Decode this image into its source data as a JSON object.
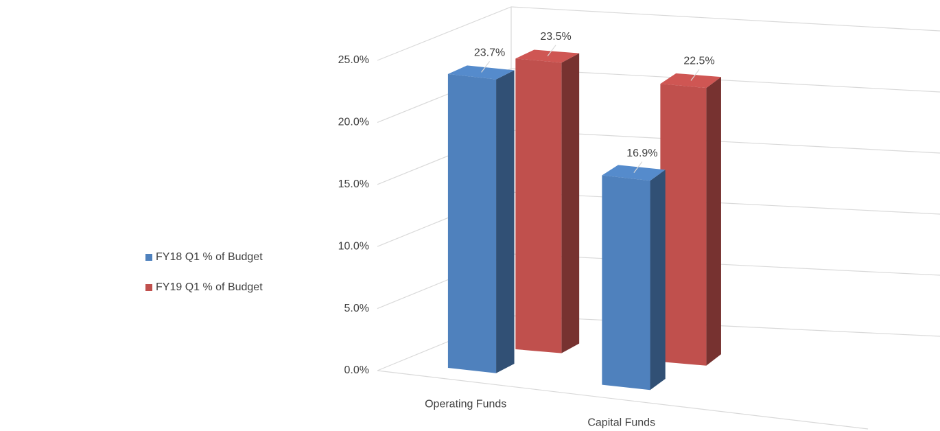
{
  "chart_data": {
    "type": "bar3d",
    "categories": [
      "Operating Funds",
      "Capital Funds"
    ],
    "series": [
      {
        "name": "FY18 Q1 % of Budget",
        "color": "#4f81bd",
        "values": [
          23.7,
          16.9
        ],
        "value_labels": [
          "23.7%",
          "16.9%"
        ]
      },
      {
        "name": "FY19 Q1 % of Budget",
        "color": "#c0504d",
        "values": [
          23.5,
          22.5
        ],
        "value_labels": [
          "23.5%",
          "22.5%"
        ]
      }
    ],
    "ylim": [
      0,
      25
    ],
    "yticks": [
      {
        "value": 0,
        "label": "0.0%"
      },
      {
        "value": 5,
        "label": "5.0%"
      },
      {
        "value": 10,
        "label": "10.0%"
      },
      {
        "value": 15,
        "label": "15.0%"
      },
      {
        "value": 20,
        "label": "20.0%"
      },
      {
        "value": 25,
        "label": "25.0%"
      }
    ],
    "grid": true,
    "legend": "left"
  }
}
